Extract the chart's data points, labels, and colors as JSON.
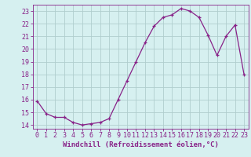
{
  "x": [
    0,
    1,
    2,
    3,
    4,
    5,
    6,
    7,
    8,
    9,
    10,
    11,
    12,
    13,
    14,
    15,
    16,
    17,
    18,
    19,
    20,
    21,
    22,
    23
  ],
  "y": [
    15.9,
    14.9,
    14.6,
    14.6,
    14.2,
    14.0,
    14.1,
    14.2,
    14.5,
    16.0,
    17.5,
    19.0,
    20.5,
    21.8,
    22.5,
    22.7,
    23.2,
    23.0,
    22.5,
    21.1,
    19.5,
    21.0,
    21.9,
    18.0
  ],
  "line_color": "#882288",
  "marker": "+",
  "marker_size": 3.5,
  "linewidth": 0.9,
  "bg_color": "#d6f0f0",
  "grid_color": "#b0cece",
  "xlabel": "Windchill (Refroidissement éolien,°C)",
  "xlabel_fontsize": 6.5,
  "xlabel_color": "#882288",
  "tick_color": "#882288",
  "tick_fontsize": 6,
  "ylim": [
    13.7,
    23.5
  ],
  "xlim": [
    -0.5,
    23.5
  ],
  "yticks": [
    14,
    15,
    16,
    17,
    18,
    19,
    20,
    21,
    22,
    23
  ],
  "xticks": [
    0,
    1,
    2,
    3,
    4,
    5,
    6,
    7,
    8,
    9,
    10,
    11,
    12,
    13,
    14,
    15,
    16,
    17,
    18,
    19,
    20,
    21,
    22,
    23
  ]
}
